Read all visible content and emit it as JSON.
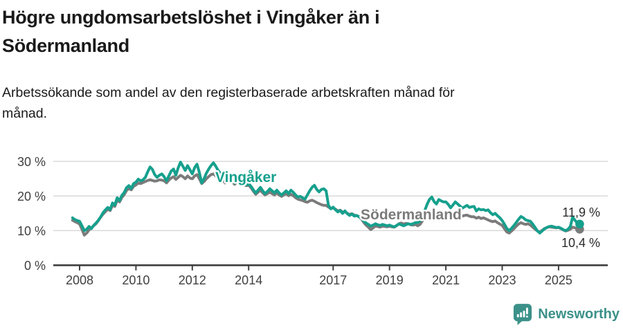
{
  "header": {
    "title_lines": [
      "Högre ungdomsarbetslöshet i Vingåker än i",
      "Södermanland"
    ],
    "subtitle_lines": [
      "Arbetssökande som andel av den registerbaserade arbetskraften månad för",
      "månad."
    ]
  },
  "chart_data": {
    "type": "line",
    "title": "Högre ungdomsarbetslöshet i Vingåker än i Södermanland",
    "subtitle": "Arbetssökande som andel av den registerbaserade arbetskraften månad för månad.",
    "unit": "%",
    "x_start": "2007-10",
    "x_end": "2025-10",
    "x_tick_years": [
      2008,
      2010,
      2012,
      2014,
      2017,
      2019,
      2021,
      2023,
      2025
    ],
    "y_ticks": [
      0,
      10,
      20,
      30
    ],
    "y_tick_suffix": " %",
    "ylim": [
      0,
      32
    ],
    "grid": "horizontal",
    "legend_position": "inline-labels",
    "colors": {
      "grid": "#dadada",
      "axis": "#404040"
    },
    "series": [
      {
        "name": "Vingåker",
        "color": "#16a08d",
        "end_label": "11,9 %",
        "end_value": 11.9,
        "values": [
          13.7,
          13.2,
          12.9,
          12.7,
          11.4,
          10.0,
          10.4,
          11.2,
          10.6,
          11.5,
          12.2,
          13.0,
          14.0,
          15.2,
          16.0,
          16.7,
          16.1,
          18.0,
          17.4,
          19.5,
          18.7,
          20.2,
          21.0,
          22.4,
          23.0,
          22.2,
          23.6,
          24.0,
          24.9,
          24.4,
          24.7,
          25.4,
          27.0,
          28.4,
          27.7,
          26.2,
          25.4,
          26.0,
          26.4,
          25.6,
          24.4,
          25.8,
          27.2,
          27.8,
          26.0,
          28.2,
          29.8,
          28.6,
          27.4,
          28.8,
          27.6,
          26.4,
          28.2,
          29.2,
          26.8,
          23.8,
          25.0,
          26.6,
          27.8,
          28.8,
          29.6,
          28.6,
          27.4,
          26.6,
          25.4,
          24.6,
          25.6,
          26.2,
          24.8,
          23.8,
          24.8,
          25.6,
          24.4,
          23.6,
          23.2,
          23.6,
          22.8,
          21.8,
          20.9,
          21.7,
          22.5,
          21.5,
          20.7,
          21.3,
          22.1,
          21.5,
          20.9,
          21.7,
          20.9,
          20.3,
          20.9,
          21.5,
          20.7,
          21.7,
          21.1,
          20.3,
          19.7,
          19.9,
          19.5,
          19.1,
          20.3,
          21.5,
          22.5,
          23.1,
          21.9,
          21.2,
          21.9,
          22.1,
          21.5,
          17.3,
          16.3,
          16.8,
          16.0,
          15.4,
          15.8,
          15.0,
          15.7,
          14.9,
          14.4,
          14.8,
          14.2,
          14.4,
          14.0,
          13.6,
          12.8,
          12.2,
          11.8,
          11.3,
          11.6,
          12.0,
          11.7,
          11.5,
          11.8,
          11.6,
          11.4,
          11.6,
          11.3,
          11.1,
          11.5,
          11.9,
          11.7,
          11.4,
          11.7,
          12.0,
          11.8,
          12.0,
          12.3,
          12.3,
          12.8,
          14.0,
          15.8,
          17.6,
          19.0,
          19.7,
          18.4,
          17.7,
          19.0,
          18.6,
          18.3,
          18.3,
          17.6,
          16.6,
          17.4,
          18.3,
          17.7,
          17.1,
          16.5,
          16.9,
          17.3,
          16.7,
          16.9,
          17.0,
          15.7,
          16.3,
          16.0,
          16.1,
          15.8,
          16.0,
          15.2,
          14.6,
          15.0,
          14.3,
          13.7,
          12.9,
          11.8,
          10.6,
          10.0,
          10.7,
          11.5,
          12.4,
          13.3,
          14.1,
          13.7,
          13.1,
          12.9,
          12.7,
          11.9,
          10.9,
          9.9,
          9.3,
          9.9,
          10.5,
          10.9,
          11.2,
          11.3,
          11.1,
          10.9,
          11.0,
          10.7,
          10.3,
          10.0,
          10.4,
          11.2,
          13.9,
          13.0,
          12.2,
          11.9
        ]
      },
      {
        "name": "Södermanland",
        "color": "#7b7b7b",
        "end_label": "10,4 %",
        "end_value": 10.4,
        "values": [
          13.0,
          12.6,
          12.3,
          11.9,
          10.4,
          8.7,
          9.3,
          10.2,
          10.8,
          11.4,
          12.0,
          12.9,
          13.9,
          14.8,
          15.5,
          16.2,
          15.8,
          17.3,
          17.0,
          18.8,
          18.3,
          19.6,
          20.4,
          21.6,
          22.2,
          21.8,
          22.8,
          23.2,
          23.8,
          23.6,
          23.9,
          24.2,
          24.5,
          24.7,
          24.5,
          24.3,
          24.4,
          24.7,
          24.6,
          24.4,
          23.8,
          24.6,
          25.2,
          25.6,
          24.8,
          25.4,
          26.0,
          25.6,
          25.0,
          25.8,
          25.2,
          25.0,
          25.8,
          26.2,
          25.0,
          23.6,
          24.2,
          25.0,
          25.6,
          26.2,
          26.4,
          25.8,
          25.4,
          25.4,
          24.6,
          23.8,
          24.6,
          25.2,
          24.2,
          23.4,
          24.0,
          24.6,
          23.8,
          23.2,
          23.0,
          23.2,
          22.4,
          21.4,
          20.5,
          21.1,
          21.7,
          20.9,
          20.3,
          20.7,
          21.1,
          20.7,
          20.3,
          20.9,
          20.3,
          19.9,
          20.3,
          20.7,
          20.1,
          20.5,
          20.1,
          19.5,
          19.1,
          18.9,
          18.7,
          18.4,
          18.2,
          18.6,
          18.8,
          18.5,
          18.1,
          17.8,
          17.5,
          17.3,
          17.3,
          16.8,
          16.4,
          16.6,
          16.2,
          15.7,
          15.9,
          15.3,
          15.5,
          15.0,
          14.7,
          14.9,
          14.5,
          14.3,
          14.1,
          13.4,
          12.4,
          11.6,
          11.0,
          10.3,
          10.8,
          11.3,
          11.2,
          11.0,
          11.3,
          11.2,
          11.1,
          11.3,
          11.1,
          11.0,
          11.4,
          12.0,
          12.2,
          11.9,
          12.1,
          12.0,
          11.7,
          11.6,
          11.8,
          11.4,
          11.8,
          12.8,
          13.8,
          14.7,
          15.2,
          15.4,
          15.0,
          14.8,
          15.1,
          15.3,
          15.2,
          15.3,
          15.0,
          14.6,
          14.9,
          15.1,
          14.8,
          14.5,
          14.2,
          14.4,
          14.5,
          14.2,
          14.0,
          14.0,
          13.6,
          13.9,
          13.5,
          13.7,
          13.4,
          13.1,
          12.8,
          12.6,
          12.8,
          12.3,
          11.9,
          11.5,
          10.5,
          9.6,
          9.3,
          9.9,
          10.6,
          11.3,
          11.9,
          12.3,
          12.0,
          11.8,
          12.0,
          11.6,
          11.0,
          10.4,
          9.9,
          9.6,
          10.1,
          10.6,
          10.9,
          11.1,
          11.0,
          10.9,
          10.8,
          10.9,
          10.6,
          10.2,
          9.9,
          10.1,
          10.4,
          11.0,
          10.8,
          10.6,
          10.4
        ]
      }
    ]
  },
  "footer": {
    "brand": "Newsworthy",
    "brand_color": "#3b9189"
  }
}
